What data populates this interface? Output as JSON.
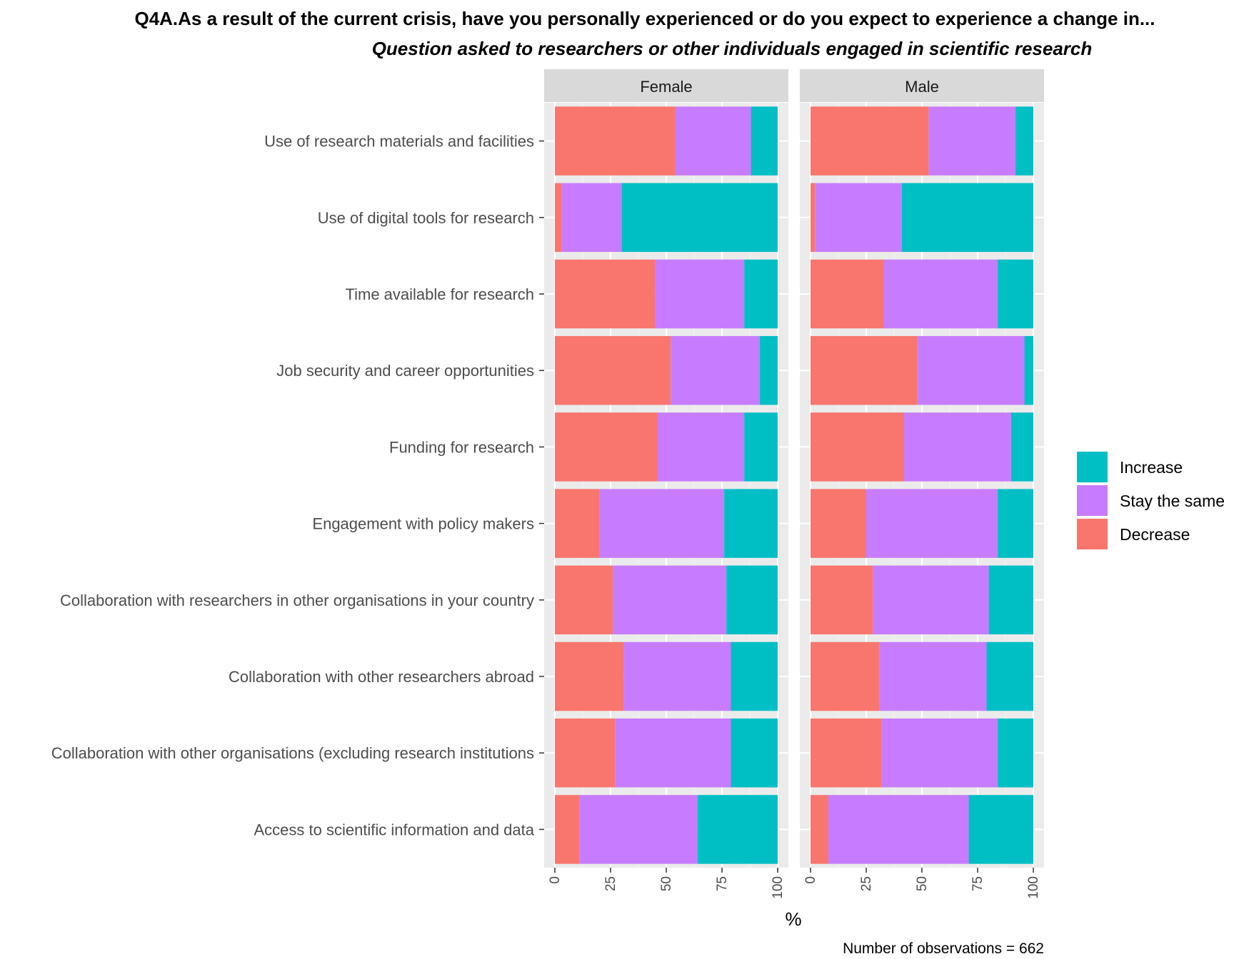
{
  "chart_data": {
    "type": "bar",
    "orientation": "horizontal",
    "stacked": true,
    "title": "Q4A.As a result of the current crisis, have you personally experienced or do you expect to experience a change in...",
    "subtitle": "Question asked to researchers or other individuals engaged in scientific research",
    "xlabel": "%",
    "caption": "Number of observations = 662",
    "xlim": [
      0,
      100
    ],
    "xticks": [
      "0",
      "25",
      "50",
      "75",
      "100"
    ],
    "grid": true,
    "legend_position": "right",
    "facets": [
      "Female",
      "Male"
    ],
    "categories": [
      "Use of research materials and facilities",
      "Use of digital tools for research",
      "Time available for research",
      "Job security and career opportunities",
      "Funding for research",
      "Engagement with policy makers",
      "Collaboration with researchers in other organisations in your country",
      "Collaboration with other researchers abroad",
      "Collaboration with other organisations (excluding research institutions",
      "Access to scientific information and data"
    ],
    "legend": [
      {
        "name": "Increase",
        "color": "#00BFC4"
      },
      {
        "name": "Stay the same",
        "color": "#C77CFF"
      },
      {
        "name": "Decrease",
        "color": "#F8766D"
      }
    ],
    "panels": [
      {
        "facet": "Female",
        "series": [
          {
            "name": "Decrease",
            "values": [
              54,
              3,
              45,
              52,
              46,
              20,
              26,
              31,
              27,
              11
            ]
          },
          {
            "name": "Stay the same",
            "values": [
              34,
              27,
              40,
              40,
              39,
              56,
              51,
              48,
              52,
              53
            ]
          },
          {
            "name": "Increase",
            "values": [
              12,
              70,
              15,
              8,
              15,
              24,
              23,
              21,
              21,
              36
            ]
          }
        ]
      },
      {
        "facet": "Male",
        "series": [
          {
            "name": "Decrease",
            "values": [
              53,
              2,
              33,
              48,
              42,
              25,
              28,
              31,
              32,
              8
            ]
          },
          {
            "name": "Stay the same",
            "values": [
              39,
              39,
              51,
              48,
              48,
              59,
              52,
              48,
              52,
              63
            ]
          },
          {
            "name": "Increase",
            "values": [
              8,
              59,
              16,
              4,
              10,
              16,
              20,
              21,
              16,
              29
            ]
          }
        ]
      }
    ]
  }
}
